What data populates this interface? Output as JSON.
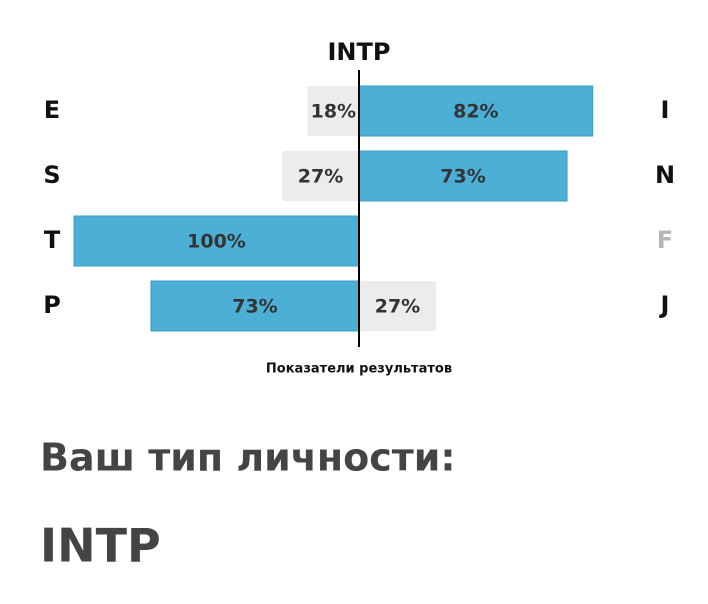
{
  "chart_data": {
    "type": "diverging-bar",
    "title": "INTP",
    "x_label": "Показатели результатов",
    "left_categories": [
      "E",
      "S",
      "T",
      "P"
    ],
    "right_categories": [
      "I",
      "N",
      "F",
      "J"
    ],
    "left_values": [
      18,
      27,
      100,
      73
    ],
    "left_value_labels": [
      "18%",
      "27%",
      "100%",
      "73%"
    ],
    "right_values": [
      82,
      73,
      0,
      27
    ],
    "right_value_labels": [
      "82%",
      "73%",
      null,
      "27%"
    ],
    "xlim": [
      0,
      100
    ],
    "dominant_color": "#4bafd6",
    "recessive_color": "#ececec",
    "letter_color": "#111111",
    "muted_letter_color": "#b5b5b5"
  },
  "result_heading": "Ваш тип личности:",
  "result_type": "INTP"
}
